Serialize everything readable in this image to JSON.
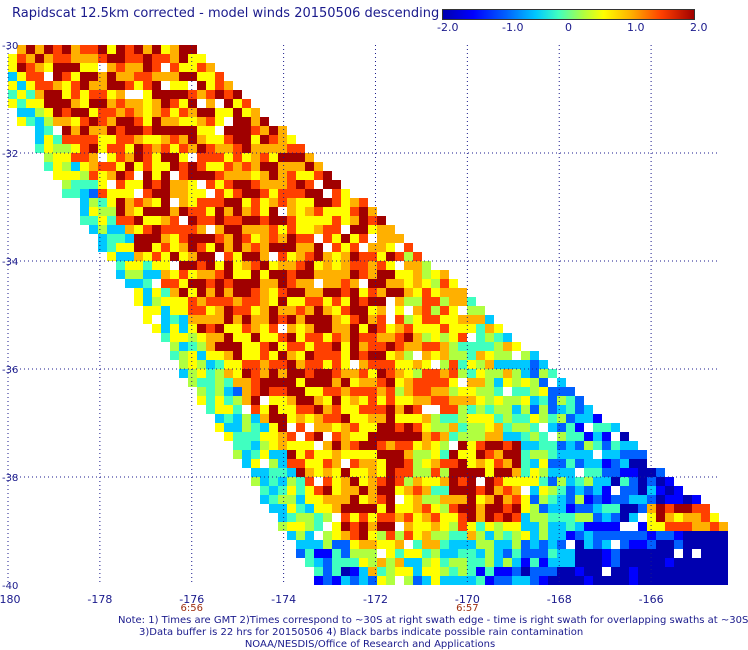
{
  "title": "Rapidscat 12.5km corrected - model winds 20150506 descending",
  "colorbar": {
    "ticks": [
      "-2.0",
      "-1.0",
      "0",
      "1.0",
      "2.0"
    ],
    "colors": [
      "#0000b0",
      "#0000ff",
      "#0060ff",
      "#00c8ff",
      "#40ffc0",
      "#b0ff40",
      "#ffff00",
      "#ffb000",
      "#ff4000",
      "#a00000"
    ]
  },
  "map": {
    "lon_ticks": [
      "-180",
      "-178",
      "-176",
      "-174",
      "-172",
      "-170",
      "-168",
      "-166"
    ],
    "lat_ticks": [
      "-30",
      "-32",
      "-34",
      "-36",
      "-38",
      "-40"
    ],
    "time_labels": [
      "6:56",
      "6:57"
    ],
    "grid_color": "#1a1a8c"
  },
  "footer": {
    "note1": "Note: 1) Times are GMT 2)Times correspond to ~30S at right swath edge - time is right swath for overlapping swaths at ~30S",
    "note2": "3)Data buffer is 22 hrs for 20150506 4) Black barbs indicate possible rain contamination",
    "credit": "NOAA/NESDIS/Office of Research and Applications"
  }
}
